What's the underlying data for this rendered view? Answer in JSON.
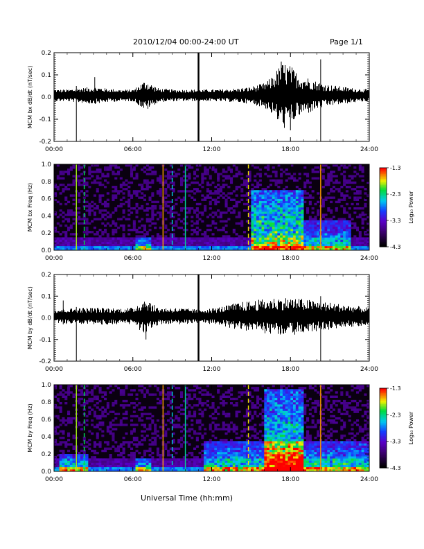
{
  "header": {
    "title": "2010/12/04   00:00-24:00 UT",
    "page": "Page 1/1"
  },
  "xlabel": "Universal Time (hh:mm)",
  "chart_data": [
    {
      "type": "line",
      "ylabel": "MCM bx dB/dt (nT/sec)",
      "xlim": [
        0,
        24
      ],
      "ylim": [
        -0.2,
        0.2
      ],
      "xticks": [
        "00:00",
        "06:00",
        "12:00",
        "18:00",
        "24:00"
      ],
      "yticks": [
        "-0.2",
        "-0.1",
        "0.0",
        "0.1",
        "0.2"
      ],
      "envelope": {
        "t": [
          0,
          1,
          1.7,
          2.5,
          3,
          4,
          5,
          6,
          6.5,
          7,
          7.5,
          8,
          9,
          10,
          11,
          12,
          13,
          14,
          15,
          16,
          16.5,
          17,
          17.5,
          18,
          18.5,
          19,
          19.5,
          20,
          21,
          22,
          23,
          24
        ],
        "amp": [
          0.012,
          0.012,
          0.015,
          0.018,
          0.02,
          0.015,
          0.012,
          0.012,
          0.025,
          0.04,
          0.025,
          0.015,
          0.012,
          0.012,
          0.012,
          0.012,
          0.013,
          0.015,
          0.02,
          0.03,
          0.045,
          0.07,
          0.09,
          0.08,
          0.06,
          0.05,
          0.045,
          0.035,
          0.025,
          0.02,
          0.015,
          0.012
        ]
      },
      "spikes": [
        {
          "t": 1.7,
          "min": -0.2,
          "max": 0.05
        },
        {
          "t": 11.0,
          "min": -0.2,
          "max": 0.22
        },
        {
          "t": 20.3,
          "min": -0.2,
          "max": 0.17
        },
        {
          "t": 3.1,
          "min": -0.02,
          "max": 0.09
        },
        {
          "t": 17.3,
          "min": -0.06,
          "max": 0.16
        },
        {
          "t": 18.0,
          "min": -0.15,
          "max": 0.1
        }
      ]
    },
    {
      "type": "heatmap",
      "ylabel": "MCM bx Freq (Hz)",
      "xlim": [
        0,
        24
      ],
      "ylim": [
        0,
        1.0
      ],
      "xticks": [
        "00:00",
        "06:00",
        "12:00",
        "18:00",
        "24:00"
      ],
      "yticks": [
        "0.0",
        "0.2",
        "0.4",
        "0.6",
        "0.8",
        "1.0"
      ],
      "colorbar": {
        "label": "Log₁₀ Power",
        "ticks": [
          "-1.3",
          "-2.3",
          "-3.3",
          "-4.3"
        ],
        "range": [
          -4.3,
          -1.3
        ]
      },
      "activity_windows": [
        {
          "t0": 15.0,
          "t1": 19.0,
          "fmax": 0.7,
          "level": 0.75
        },
        {
          "t0": 19.0,
          "t1": 22.5,
          "fmax": 0.35,
          "level": 0.5
        },
        {
          "t0": 6.3,
          "t1": 7.3,
          "fmax": 0.15,
          "level": 0.45
        }
      ],
      "vertical_lines": [
        {
          "t": 1.7,
          "level": 0.8
        },
        {
          "t": 2.3,
          "level": 0.7
        },
        {
          "t": 8.3,
          "level": 0.9
        },
        {
          "t": 9.0,
          "level": 0.6
        },
        {
          "t": 10.0,
          "level": 0.65
        },
        {
          "t": 14.8,
          "level": 0.85
        },
        {
          "t": 20.3,
          "level": 0.9
        }
      ]
    },
    {
      "type": "line",
      "ylabel": "MCM by dB/dt (nT/sec)",
      "xlim": [
        0,
        24
      ],
      "ylim": [
        -0.2,
        0.2
      ],
      "xticks": [
        "00:00",
        "06:00",
        "12:00",
        "18:00",
        "24:00"
      ],
      "yticks": [
        "-0.2",
        "-0.1",
        "0.0",
        "0.1",
        "0.2"
      ],
      "envelope": {
        "t": [
          0,
          1,
          2,
          3,
          4,
          5,
          6,
          6.5,
          7,
          7.5,
          8,
          9,
          10,
          11,
          12,
          13,
          14,
          15,
          16,
          17,
          18,
          19,
          20,
          21,
          22,
          23,
          24
        ],
        "amp": [
          0.015,
          0.018,
          0.02,
          0.02,
          0.02,
          0.018,
          0.02,
          0.035,
          0.05,
          0.03,
          0.02,
          0.02,
          0.018,
          0.015,
          0.018,
          0.025,
          0.035,
          0.04,
          0.045,
          0.05,
          0.05,
          0.045,
          0.04,
          0.035,
          0.03,
          0.025,
          0.02
        ]
      },
      "spikes": [
        {
          "t": 1.7,
          "min": -0.2,
          "max": 0.05
        },
        {
          "t": 11.0,
          "min": -0.2,
          "max": 0.22
        },
        {
          "t": 20.3,
          "min": -0.2,
          "max": 0.1
        },
        {
          "t": 0.7,
          "min": -0.03,
          "max": 0.08
        },
        {
          "t": 7.0,
          "min": -0.1,
          "max": 0.06
        }
      ]
    },
    {
      "type": "heatmap",
      "ylabel": "MCM by Freq (Hz)",
      "xlim": [
        0,
        24
      ],
      "ylim": [
        0,
        1.0
      ],
      "xticks": [
        "00:00",
        "06:00",
        "12:00",
        "18:00",
        "24:00"
      ],
      "yticks": [
        "0.0",
        "0.2",
        "0.4",
        "0.6",
        "0.8",
        "1.0"
      ],
      "colorbar": {
        "label": "Log₁₀ Power",
        "ticks": [
          "-1.3",
          "-2.3",
          "-3.3",
          "-4.3"
        ],
        "range": [
          -4.3,
          -1.3
        ]
      },
      "activity_windows": [
        {
          "t0": 11.5,
          "t1": 24.0,
          "fmax": 0.35,
          "level": 0.55
        },
        {
          "t0": 16.0,
          "t1": 19.0,
          "fmax": 0.95,
          "level": 0.7
        },
        {
          "t0": 0.5,
          "t1": 2.5,
          "fmax": 0.2,
          "level": 0.5
        },
        {
          "t0": 6.3,
          "t1": 7.3,
          "fmax": 0.15,
          "level": 0.45
        }
      ],
      "vertical_lines": [
        {
          "t": 1.7,
          "level": 0.8
        },
        {
          "t": 2.3,
          "level": 0.7
        },
        {
          "t": 8.3,
          "level": 0.9
        },
        {
          "t": 9.0,
          "level": 0.6
        },
        {
          "t": 10.0,
          "level": 0.65
        },
        {
          "t": 14.8,
          "level": 0.85
        },
        {
          "t": 20.3,
          "level": 0.9
        }
      ]
    }
  ]
}
